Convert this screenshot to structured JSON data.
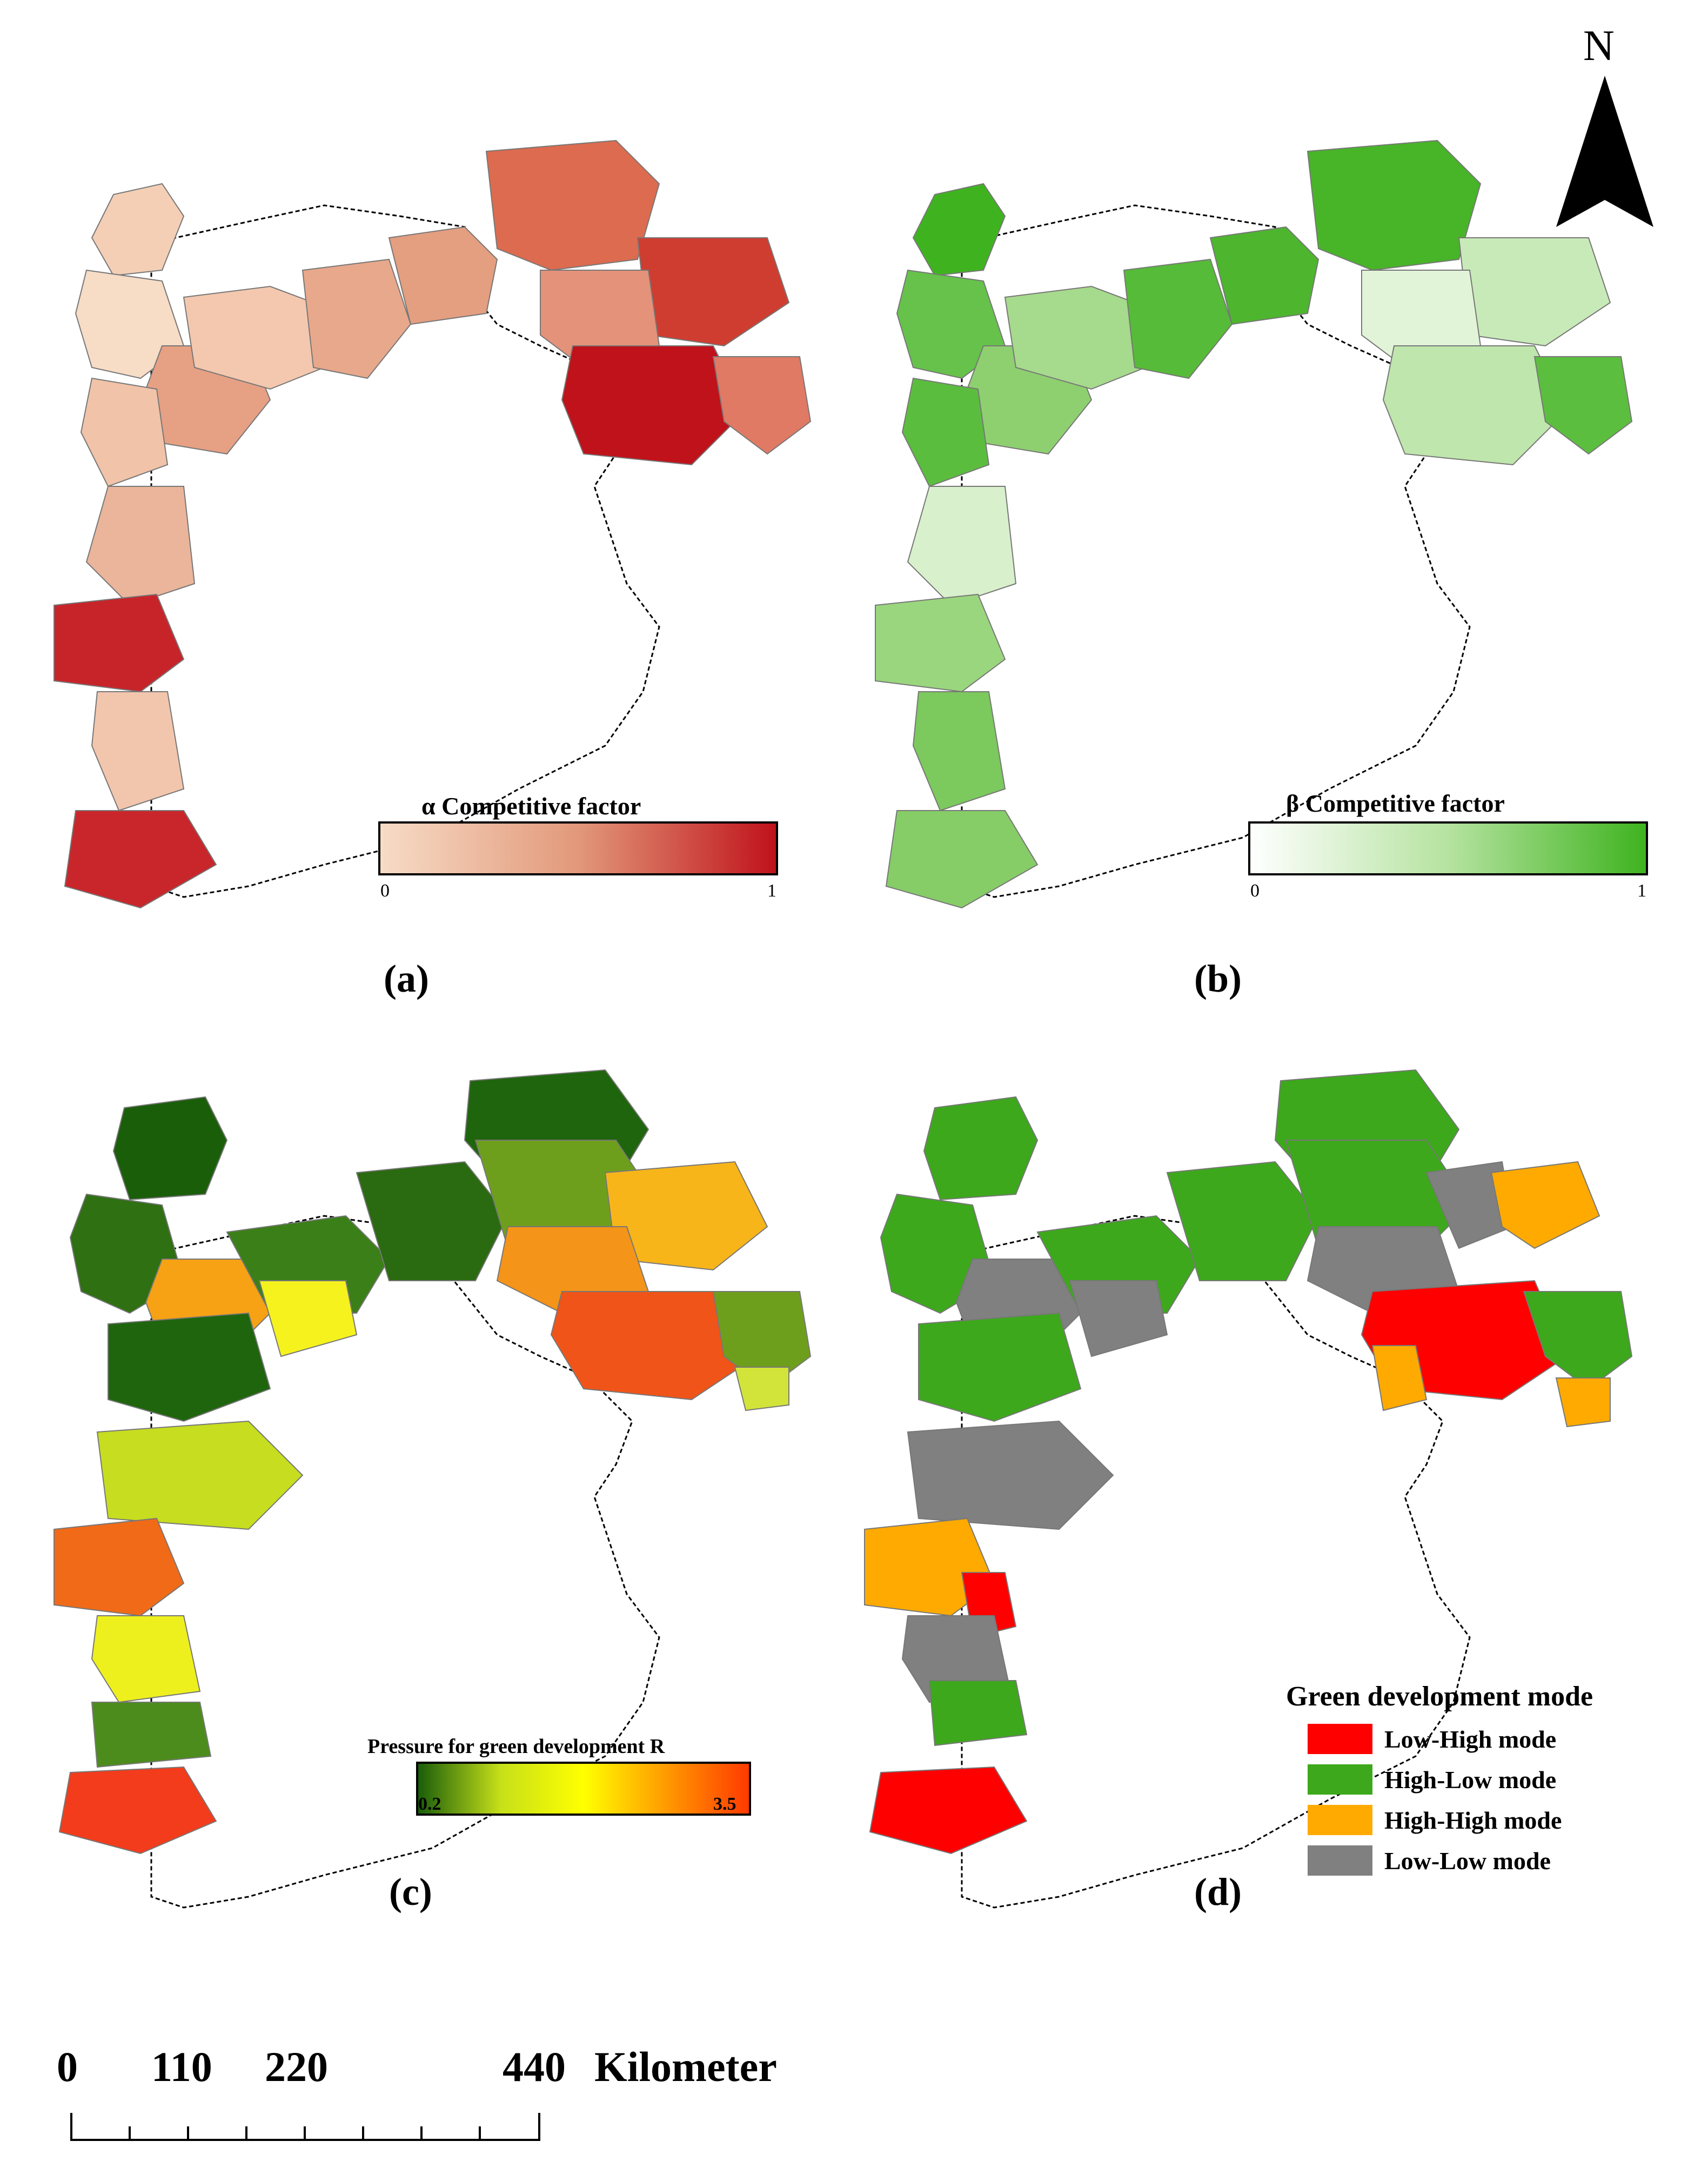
{
  "north_arrow": {
    "label": "N",
    "icon": "north-arrow-icon"
  },
  "panels": {
    "a": {
      "label": "(a)",
      "legend_title": "α Competitive factor",
      "legend_min": "0",
      "legend_max": "1",
      "ramp_colors": [
        "#f7dcc6",
        "#e2987a",
        "#c0121b"
      ]
    },
    "b": {
      "label": "(b)",
      "legend_title": "β Competitive factor",
      "legend_min": "0",
      "legend_max": "1",
      "ramp_colors": [
        "#ffffff",
        "#b5e3a0",
        "#3fb31f"
      ]
    },
    "c": {
      "label": "(c)",
      "legend_title": "Pressure for green development R",
      "legend_min": "0.2",
      "legend_max": "3.5",
      "ramp_colors": [
        "#1a5e0a",
        "#c7e019",
        "#ffff00",
        "#ff9a00",
        "#ff3a00"
      ]
    },
    "d": {
      "label": "(d)",
      "legend_title": "Green development mode",
      "categories": [
        {
          "label": "Low-High mode",
          "color": "#ff0000"
        },
        {
          "label": "High-Low mode",
          "color": "#3da81c"
        },
        {
          "label": "High-High mode",
          "color": "#ffaa00"
        },
        {
          "label": "Low-Low mode",
          "color": "#808080"
        }
      ]
    }
  },
  "scale_bar": {
    "ticks": [
      "0",
      "110",
      "220",
      "440"
    ],
    "unit": "Kilometer"
  }
}
